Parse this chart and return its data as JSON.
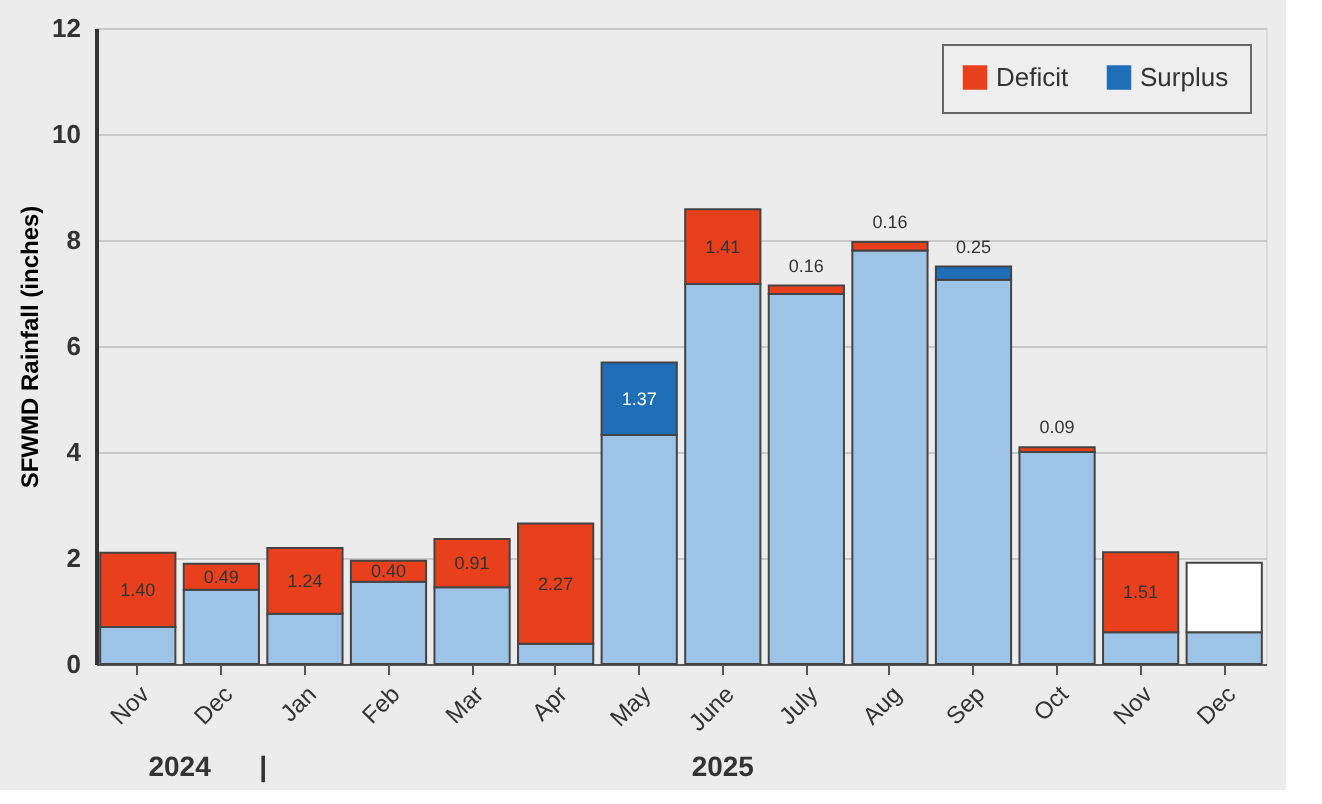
{
  "chart_data": {
    "type": "bar",
    "stacked": true,
    "ylabel": "SFWMD Rainfall (inches)",
    "categories": [
      "Nov",
      "Dec",
      "Jan",
      "Feb",
      "Mar",
      "Apr",
      "May",
      "June",
      "July",
      "Aug",
      "Sep",
      "Oct",
      "Nov",
      "Dec"
    ],
    "series": [
      {
        "color": "#9dc3e6",
        "values": [
          0.7,
          1.4,
          0.95,
          1.55,
          1.45,
          0.38,
          4.32,
          7.17,
          6.98,
          7.8,
          7.25,
          4.0,
          0.6,
          0.6
        ]
      },
      {
        "name": "Deficit",
        "color": "#e8401c",
        "values": [
          1.4,
          0.49,
          1.24,
          0.4,
          0.91,
          2.27,
          null,
          1.41,
          0.16,
          0.16,
          null,
          0.09,
          1.51,
          null
        ],
        "value_labels": [
          "1.40",
          "0.49",
          "1.24",
          "0.40",
          "0.91",
          "2.27",
          null,
          "1.41",
          "0.16",
          "0.16",
          null,
          "0.09",
          "1.51",
          null
        ]
      },
      {
        "name": "Surplus",
        "color": "#1f6fb8",
        "values": [
          null,
          null,
          null,
          null,
          null,
          null,
          1.37,
          null,
          null,
          null,
          0.25,
          null,
          null,
          null
        ],
        "value_labels": [
          null,
          null,
          null,
          null,
          null,
          null,
          "1.37",
          null,
          null,
          null,
          "0.25",
          null,
          null,
          null
        ]
      },
      {
        "color": "#ffffff",
        "values": [
          null,
          null,
          null,
          null,
          null,
          null,
          null,
          null,
          null,
          null,
          null,
          null,
          null,
          1.31
        ]
      }
    ],
    "ylim": [
      0,
      12
    ],
    "yticks": [
      0,
      2,
      4,
      6,
      8,
      10,
      12
    ],
    "grid": "y",
    "legend": "top right",
    "annotations": [
      "2024",
      "|",
      "2025"
    ]
  }
}
